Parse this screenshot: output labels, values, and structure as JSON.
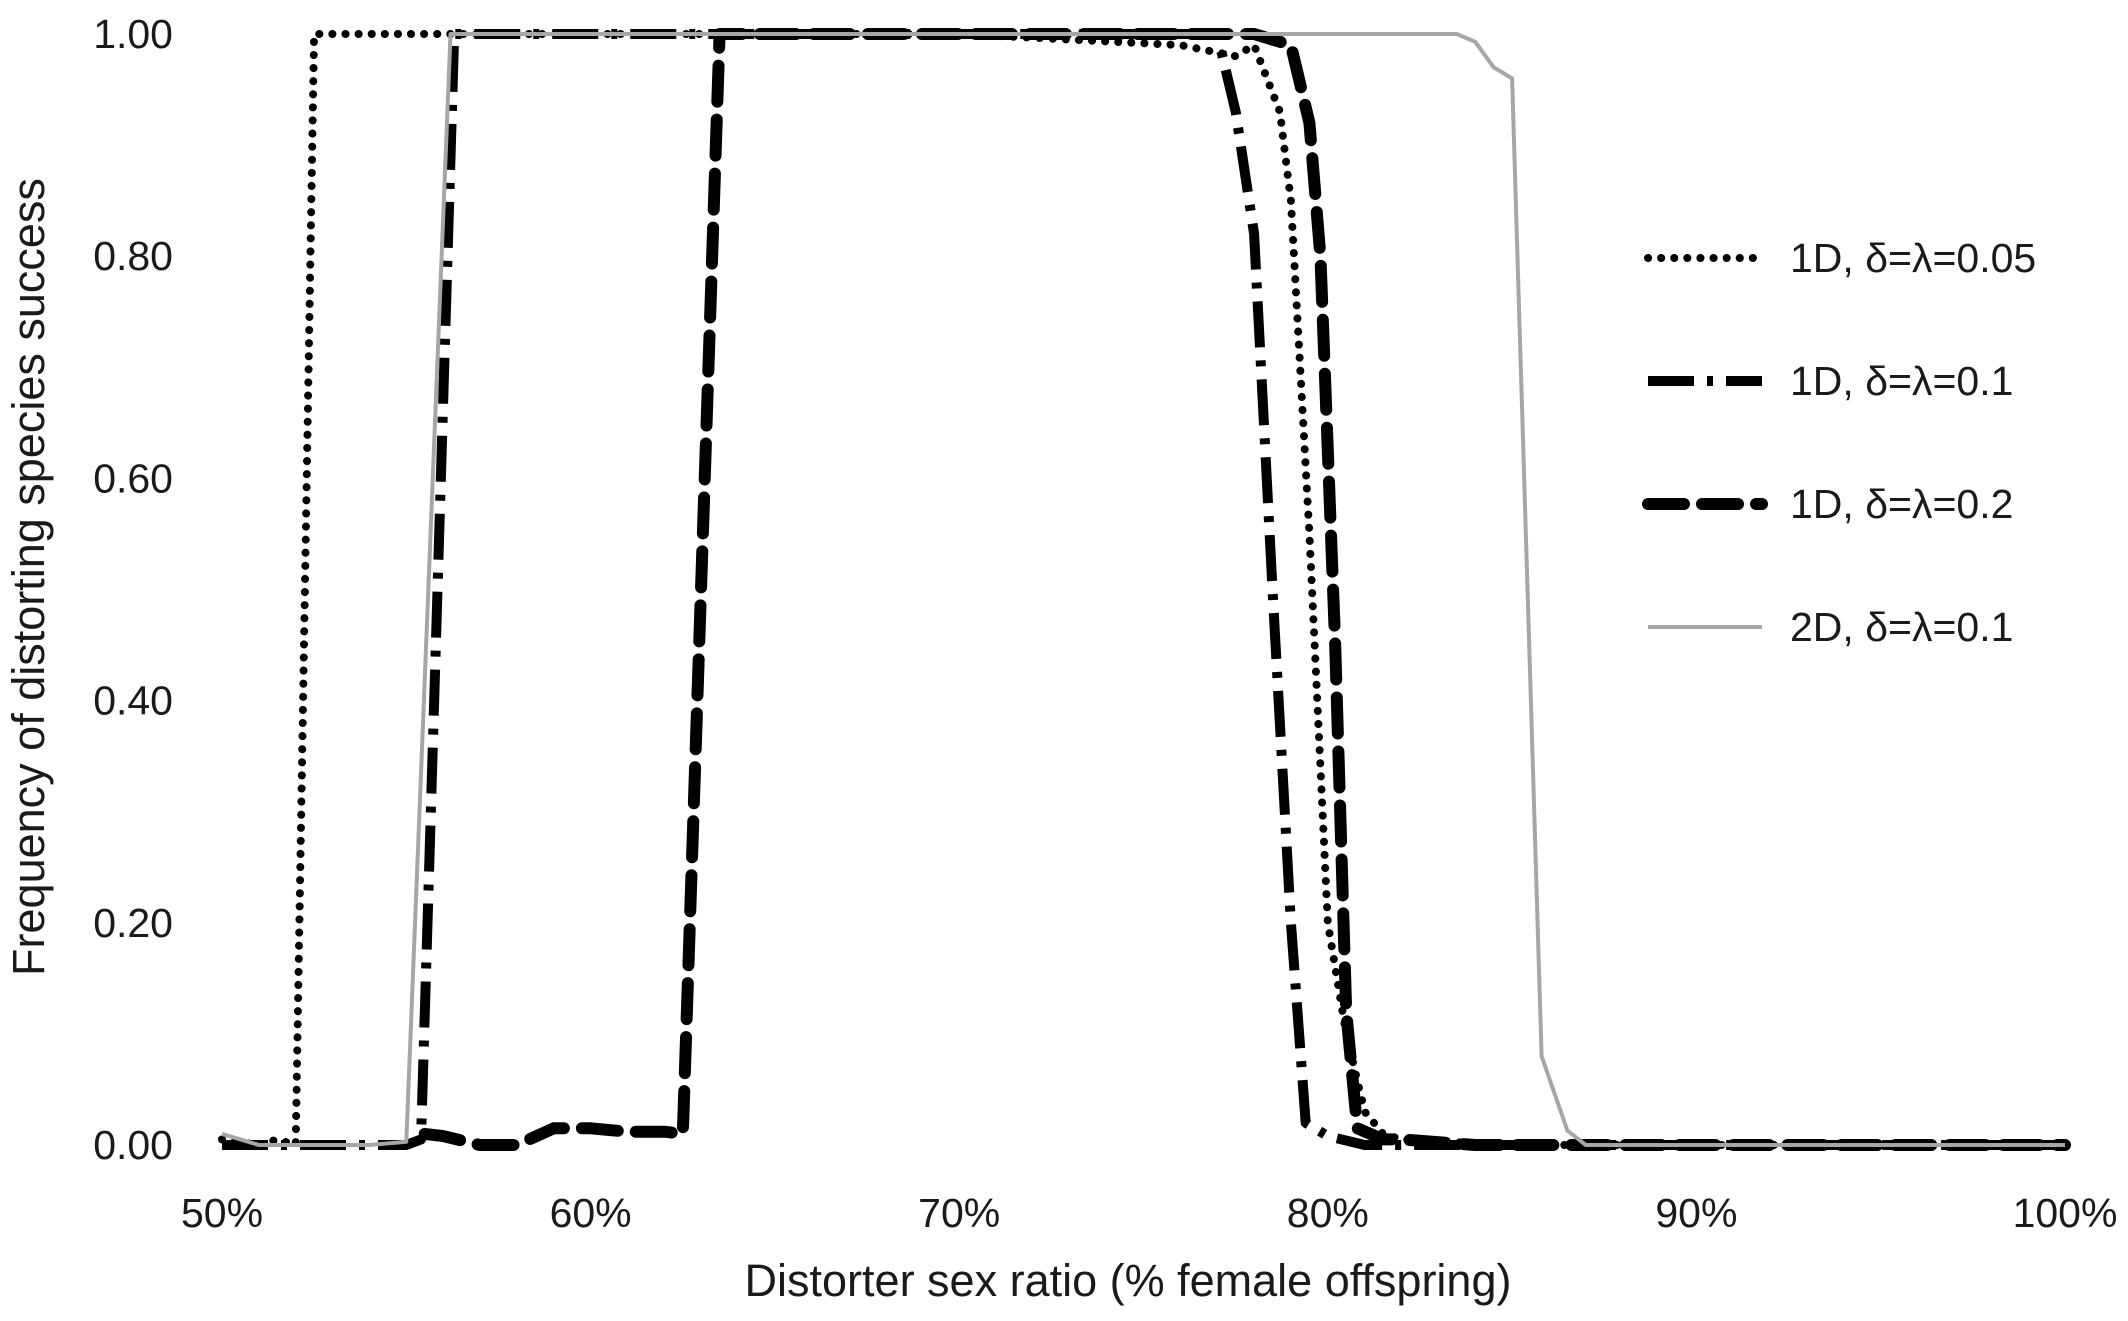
{
  "chart_data": {
    "type": "line",
    "xlabel": "Distorter sex ratio (% female offspring)",
    "ylabel": "Frequency of distorting species success",
    "xlim": [
      50,
      100
    ],
    "ylim": [
      0,
      1
    ],
    "x_tick_values": [
      50,
      60,
      70,
      80,
      90,
      100
    ],
    "x_tick_labels": [
      "50%",
      "60%",
      "70%",
      "80%",
      "90%",
      "100%"
    ],
    "y_tick_values": [
      0,
      0.2,
      0.4,
      0.6,
      0.8,
      1.0
    ],
    "y_tick_labels": [
      "0.00",
      "0.20",
      "0.40",
      "0.60",
      "0.80",
      "1.00"
    ],
    "grid": false,
    "legend_position": "right",
    "series": [
      {
        "name": "1D, δ=λ=0.05",
        "style": "dotted",
        "color": "#000000",
        "points": [
          [
            50,
            0.005
          ],
          [
            51,
            0.0
          ],
          [
            51.5,
            0.005
          ],
          [
            52,
            0.0
          ],
          [
            52.5,
            1.0
          ],
          [
            53,
            1.0
          ],
          [
            60,
            1.0
          ],
          [
            70,
            1.0
          ],
          [
            76,
            0.99
          ],
          [
            77.5,
            0.98
          ],
          [
            78,
            0.99
          ],
          [
            78.7,
            0.93
          ],
          [
            79,
            0.85
          ],
          [
            79.5,
            0.55
          ],
          [
            80,
            0.2
          ],
          [
            80.5,
            0.1
          ],
          [
            81,
            0.03
          ],
          [
            81.5,
            0.01
          ],
          [
            82,
            0.005
          ],
          [
            85,
            0.0
          ],
          [
            100,
            0.0
          ]
        ]
      },
      {
        "name": "1D, δ=λ=0.1",
        "style": "dash-dot",
        "color": "#000000",
        "points": [
          [
            50,
            0.0
          ],
          [
            51,
            0.0
          ],
          [
            53,
            0.0
          ],
          [
            54,
            0.0
          ],
          [
            55,
            0.0
          ],
          [
            55.4,
            0.005
          ],
          [
            56.3,
            1.0
          ],
          [
            60,
            1.0
          ],
          [
            70,
            1.0
          ],
          [
            77,
            1.0
          ],
          [
            77.5,
            0.93
          ],
          [
            78,
            0.82
          ],
          [
            78.5,
            0.5
          ],
          [
            79,
            0.2
          ],
          [
            79.4,
            0.02
          ],
          [
            80,
            0.008
          ],
          [
            81,
            0.0
          ],
          [
            100,
            0.0
          ]
        ]
      },
      {
        "name": "1D, δ=λ=0.2",
        "style": "dashed",
        "color": "#000000",
        "points": [
          [
            55.5,
            0.01
          ],
          [
            56,
            0.008
          ],
          [
            57,
            0.0
          ],
          [
            58,
            0.0
          ],
          [
            59,
            0.015
          ],
          [
            60,
            0.015
          ],
          [
            61,
            0.012
          ],
          [
            62,
            0.012
          ],
          [
            62.5,
            0.01
          ],
          [
            63.5,
            1.0
          ],
          [
            65,
            1.0
          ],
          [
            70,
            1.0
          ],
          [
            78,
            1.0
          ],
          [
            79,
            0.99
          ],
          [
            79.5,
            0.92
          ],
          [
            79.8,
            0.8
          ],
          [
            80.2,
            0.45
          ],
          [
            80.5,
            0.12
          ],
          [
            80.8,
            0.015
          ],
          [
            81.5,
            0.005
          ],
          [
            82,
            0.005
          ],
          [
            84,
            0.0
          ],
          [
            100,
            0.0
          ]
        ]
      },
      {
        "name": "2D, δ=λ=0.1",
        "style": "solid",
        "color": "#a6a6a6",
        "points": [
          [
            50,
            0.01
          ],
          [
            51,
            0.0
          ],
          [
            53,
            0.0
          ],
          [
            54,
            0.0
          ],
          [
            55,
            0.003
          ],
          [
            56.2,
            1.0
          ],
          [
            60,
            1.0
          ],
          [
            70,
            1.0
          ],
          [
            80,
            1.0
          ],
          [
            83.5,
            1.0
          ],
          [
            84,
            0.993
          ],
          [
            84.5,
            0.97
          ],
          [
            85,
            0.96
          ],
          [
            85.8,
            0.08
          ],
          [
            86.5,
            0.013
          ],
          [
            87,
            0.0
          ],
          [
            100,
            0.0
          ]
        ]
      }
    ]
  }
}
